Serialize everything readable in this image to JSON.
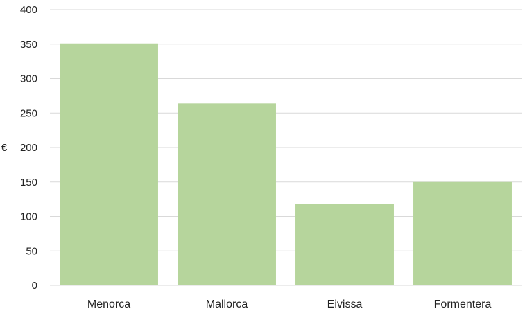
{
  "chart_data": {
    "type": "bar",
    "categories": [
      "Menorca",
      "Mallorca",
      "Eivissa",
      "Formentera"
    ],
    "values": [
      351,
      264,
      118,
      150
    ],
    "title": "",
    "xlabel": "",
    "ylabel": "€",
    "ylim": [
      0,
      400
    ],
    "yticks": [
      "0",
      "50",
      "100",
      "150",
      "200",
      "250",
      "300",
      "350",
      "400"
    ],
    "grid": true,
    "bar_color": "#b6d59c",
    "grid_color": "#d9d9d9"
  }
}
